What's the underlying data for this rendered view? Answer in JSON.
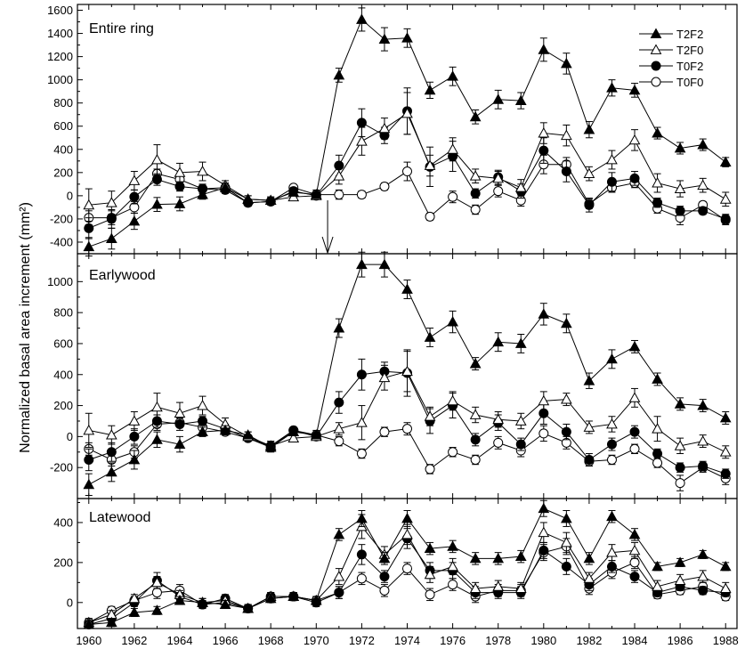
{
  "chart_data": {
    "type": "line",
    "ylabel": "Normalized basal area increment (mm²)",
    "x": [
      1960,
      1961,
      1962,
      1963,
      1964,
      1965,
      1966,
      1967,
      1968,
      1969,
      1970,
      1971,
      1972,
      1973,
      1974,
      1975,
      1976,
      1977,
      1978,
      1979,
      1980,
      1981,
      1982,
      1983,
      1984,
      1985,
      1986,
      1987,
      1988
    ],
    "x_ticks": [
      "1960",
      "1962",
      "1964",
      "1966",
      "1968",
      "1970",
      "1972",
      "1974",
      "1976",
      "1978",
      "1980",
      "1982",
      "1984",
      "1986",
      "1988"
    ],
    "legend": [
      "T2F2",
      "T2F0",
      "T0F2",
      "T0F0"
    ],
    "legend_placement": "top-right",
    "annotation": "downward arrow at 1970.5 marking treatment start",
    "panels": [
      {
        "title": "Entire ring",
        "ylim": [
          -500,
          1650
        ],
        "y_ticks": [
          "-400",
          "-200",
          "0",
          "200",
          "400",
          "600",
          "800",
          "1000",
          "1200",
          "1400",
          "1600"
        ],
        "series": [
          {
            "name": "T2F2",
            "marker": "filled-triangle",
            "values": [
              -440,
              -370,
              -220,
              -75,
              -70,
              10,
              70,
              -30,
              -40,
              30,
              10,
              1040,
              1520,
              1350,
              1360,
              910,
              1030,
              680,
              830,
              820,
              1260,
              1140,
              570,
              930,
              910,
              540,
              410,
              440,
              290
            ],
            "errors": [
              80,
              90,
              70,
              60,
              60,
              40,
              40,
              30,
              30,
              30,
              20,
              60,
              100,
              100,
              80,
              70,
              80,
              60,
              80,
              70,
              100,
              90,
              70,
              70,
              60,
              50,
              50,
              50,
              40
            ]
          },
          {
            "name": "T2F0",
            "marker": "open-triangle",
            "values": [
              -80,
              -60,
              130,
              310,
              200,
              210,
              90,
              -30,
              -40,
              -10,
              0,
              170,
              470,
              580,
              710,
              260,
              400,
              170,
              150,
              70,
              540,
              520,
              190,
              310,
              480,
              110,
              60,
              90,
              -30
            ],
            "errors": [
              140,
              100,
              80,
              130,
              80,
              80,
              40,
              30,
              30,
              30,
              20,
              70,
              120,
              90,
              180,
              90,
              100,
              60,
              60,
              70,
              90,
              90,
              60,
              80,
              90,
              80,
              70,
              60,
              60
            ]
          },
          {
            "name": "T0F2",
            "marker": "filled-circle",
            "values": [
              -280,
              -200,
              -10,
              140,
              80,
              60,
              50,
              -60,
              -50,
              40,
              0,
              260,
              630,
              520,
              730,
              250,
              340,
              20,
              160,
              40,
              390,
              210,
              -80,
              120,
              150,
              -60,
              -130,
              -130,
              -200
            ],
            "errors": [
              90,
              80,
              60,
              50,
              40,
              40,
              30,
              30,
              30,
              30,
              20,
              90,
              120,
              70,
              200,
              170,
              130,
              40,
              60,
              60,
              110,
              90,
              60,
              80,
              60,
              40,
              40,
              30,
              40
            ]
          },
          {
            "name": "T0F0",
            "marker": "open-circle",
            "values": [
              -190,
              -190,
              -100,
              190,
              140,
              60,
              70,
              -60,
              -50,
              70,
              10,
              10,
              10,
              80,
              210,
              -180,
              -10,
              -120,
              40,
              -40,
              270,
              270,
              -70,
              70,
              110,
              -110,
              -190,
              -80,
              -210
            ],
            "errors": [
              60,
              60,
              50,
              40,
              40,
              30,
              30,
              30,
              20,
              20,
              40,
              40,
              30,
              30,
              80,
              30,
              50,
              40,
              50,
              50,
              80,
              60,
              40,
              40,
              40,
              40,
              60,
              30,
              40
            ]
          }
        ]
      },
      {
        "title": "Earlywood",
        "ylim": [
          -400,
          1180
        ],
        "y_ticks": [
          "-200",
          "0",
          "200",
          "400",
          "600",
          "800",
          "1000"
        ],
        "series": [
          {
            "name": "T2F2",
            "marker": "filled-triangle",
            "values": [
              -310,
              -230,
              -150,
              -20,
              -50,
              30,
              40,
              10,
              -70,
              30,
              10,
              700,
              1110,
              1110,
              950,
              640,
              740,
              470,
              610,
              600,
              790,
              730,
              360,
              500,
              580,
              370,
              210,
              200,
              120
            ],
            "errors": [
              70,
              60,
              60,
              50,
              50,
              30,
              30,
              20,
              30,
              20,
              20,
              60,
              80,
              80,
              60,
              60,
              70,
              40,
              60,
              60,
              70,
              60,
              50,
              60,
              40,
              40,
              40,
              40,
              40
            ]
          },
          {
            "name": "T2F0",
            "marker": "open-triangle",
            "values": [
              40,
              10,
              100,
              190,
              150,
              200,
              80,
              0,
              -60,
              -10,
              0,
              50,
              90,
              380,
              420,
              130,
              230,
              140,
              110,
              100,
              230,
              240,
              60,
              80,
              250,
              50,
              -60,
              -30,
              -100
            ],
            "errors": [
              110,
              60,
              60,
              90,
              70,
              60,
              40,
              30,
              30,
              20,
              20,
              40,
              110,
              80,
              130,
              60,
              60,
              50,
              50,
              50,
              60,
              40,
              40,
              50,
              60,
              80,
              50,
              40,
              40
            ]
          },
          {
            "name": "T0F2",
            "marker": "filled-circle",
            "values": [
              -150,
              -100,
              0,
              100,
              80,
              100,
              50,
              -10,
              -60,
              40,
              0,
              220,
              400,
              420,
              410,
              100,
              200,
              -20,
              90,
              -50,
              150,
              30,
              -150,
              -50,
              30,
              -110,
              -200,
              -190,
              -240
            ],
            "errors": [
              70,
              60,
              50,
              40,
              40,
              30,
              30,
              20,
              30,
              20,
              20,
              70,
              100,
              60,
              150,
              80,
              80,
              40,
              50,
              40,
              70,
              50,
              40,
              40,
              40,
              30,
              30,
              30,
              30
            ]
          },
          {
            "name": "T0F0",
            "marker": "open-circle",
            "values": [
              -80,
              -150,
              -100,
              80,
              90,
              60,
              30,
              -10,
              -70,
              40,
              10,
              -30,
              -110,
              30,
              50,
              -210,
              -100,
              -150,
              -40,
              -90,
              20,
              -40,
              -160,
              -150,
              -80,
              -170,
              -300,
              -200,
              -270
            ],
            "errors": [
              40,
              40,
              40,
              40,
              30,
              30,
              20,
              20,
              20,
              20,
              30,
              30,
              30,
              30,
              40,
              30,
              30,
              30,
              40,
              40,
              50,
              40,
              30,
              30,
              30,
              30,
              50,
              30,
              40
            ]
          }
        ]
      },
      {
        "title": "Latewood",
        "ylim": [
          -130,
          520
        ],
        "y_ticks": [
          "0",
          "200",
          "400"
        ],
        "series": [
          {
            "name": "T2F2",
            "marker": "filled-triangle",
            "values": [
              -110,
              -100,
              -50,
              -40,
              10,
              0,
              -10,
              -30,
              20,
              30,
              10,
              340,
              420,
              220,
              420,
              270,
              280,
              220,
              220,
              230,
              470,
              420,
              220,
              430,
              340,
              180,
              200,
              240,
              180
            ],
            "errors": [
              20,
              20,
              20,
              20,
              20,
              20,
              20,
              20,
              20,
              20,
              20,
              30,
              40,
              30,
              40,
              30,
              30,
              30,
              30,
              30,
              40,
              40,
              30,
              30,
              30,
              20,
              20,
              20,
              20
            ]
          },
          {
            "name": "T2F0",
            "marker": "open-triangle",
            "values": [
              -100,
              -60,
              20,
              100,
              40,
              0,
              10,
              -30,
              30,
              30,
              10,
              130,
              380,
              240,
              340,
              140,
              180,
              70,
              80,
              70,
              350,
              300,
              120,
              250,
              260,
              80,
              110,
              130,
              70
            ],
            "errors": [
              20,
              20,
              20,
              30,
              20,
              20,
              20,
              20,
              20,
              20,
              20,
              40,
              60,
              40,
              50,
              40,
              40,
              30,
              30,
              30,
              50,
              50,
              30,
              40,
              40,
              30,
              30,
              30,
              30
            ]
          },
          {
            "name": "T0F2",
            "marker": "filled-circle",
            "values": [
              -110,
              -80,
              0,
              110,
              30,
              -10,
              20,
              -30,
              30,
              30,
              0,
              50,
              240,
              130,
              320,
              160,
              160,
              50,
              50,
              50,
              260,
              180,
              90,
              180,
              130,
              50,
              80,
              60,
              50
            ],
            "errors": [
              20,
              20,
              20,
              40,
              20,
              20,
              20,
              20,
              20,
              20,
              20,
              30,
              50,
              30,
              50,
              40,
              40,
              30,
              30,
              30,
              40,
              40,
              30,
              30,
              30,
              20,
              20,
              20,
              20
            ]
          },
          {
            "name": "T0F0",
            "marker": "open-circle",
            "values": [
              -100,
              -40,
              10,
              50,
              60,
              -10,
              0,
              -30,
              20,
              30,
              10,
              50,
              120,
              60,
              170,
              40,
              90,
              30,
              60,
              60,
              250,
              280,
              70,
              150,
              200,
              40,
              60,
              80,
              30
            ],
            "errors": [
              20,
              20,
              20,
              30,
              30,
              20,
              20,
              20,
              20,
              20,
              20,
              30,
              30,
              30,
              30,
              30,
              30,
              30,
              30,
              30,
              40,
              40,
              30,
              30,
              30,
              20,
              20,
              20,
              20
            ]
          }
        ]
      }
    ]
  }
}
